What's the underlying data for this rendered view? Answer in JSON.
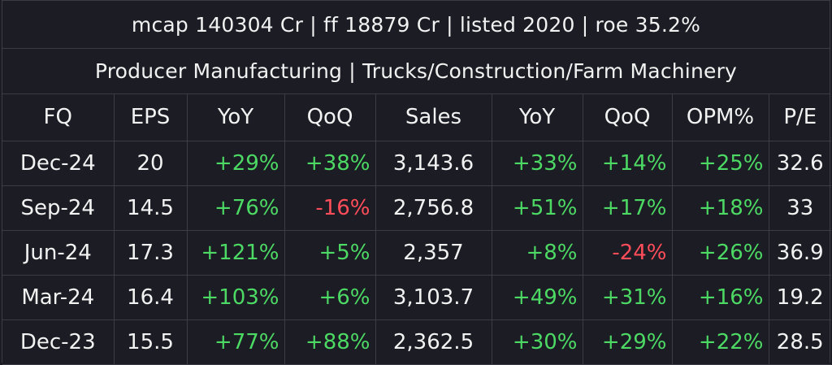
{
  "meta_line": "mcap 140304 Cr  |  ff 18879 Cr  |  listed 2020  |  roe 35.2%",
  "category_line": "Producer Manufacturing  |  Trucks/Construction/Farm Machinery",
  "table": {
    "headers": [
      "FQ",
      "EPS",
      "YoY",
      "QoQ",
      "Sales",
      "YoY",
      "QoQ",
      "OPM%",
      "P/E"
    ],
    "rows": [
      [
        "Dec-24",
        "20",
        "+29%",
        "+38%",
        "3,143.6",
        "+33%",
        "+14%",
        "+25%",
        "32.6"
      ],
      [
        "Sep-24",
        "14.5",
        "+76%",
        "-16%",
        "2,756.8",
        "+51%",
        "+17%",
        "+18%",
        "33"
      ],
      [
        "Jun-24",
        "17.3",
        "+121%",
        "+5%",
        "2,357",
        "+8%",
        "-24%",
        "+26%",
        "36.9"
      ],
      [
        "Mar-24",
        "16.4",
        "+103%",
        "+6%",
        "3,103.7",
        "+49%",
        "+31%",
        "+16%",
        "19.2"
      ],
      [
        "Dec-23",
        "15.5",
        "+77%",
        "+88%",
        "2,362.5",
        "+30%",
        "+29%",
        "+22%",
        "28.5"
      ]
    ]
  },
  "colors": {
    "positive": "#4cd964",
    "negative": "#ff4d5a",
    "background": "#1c1c24",
    "gridline": "#3c3c46"
  }
}
